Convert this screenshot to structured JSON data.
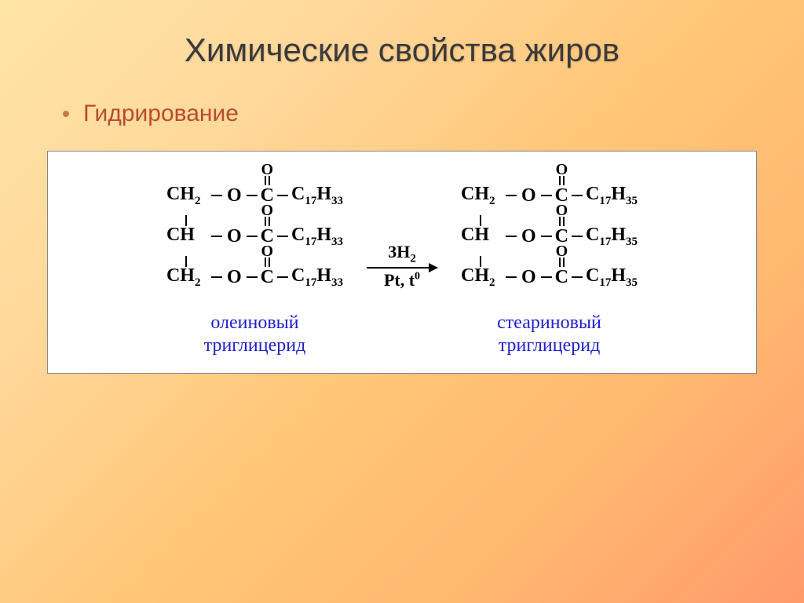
{
  "slide": {
    "title": "Химические свойства жиров",
    "subtitle": "Гидрирование",
    "background_gradient": [
      "#ffe4a8",
      "#ffd89b",
      "#ffc77a",
      "#ffb870",
      "#ff9a6b"
    ],
    "title_color": "#3a3a3a",
    "subtitle_color": "#b84c2f",
    "bullet_color": "#c77a3a"
  },
  "reaction": {
    "reactant": {
      "backbone": [
        "CH",
        "CH",
        "CH"
      ],
      "backbone_sub": [
        "2",
        "",
        "2"
      ],
      "tail_formula": "C",
      "tail_c_sub": "17",
      "tail_h": "H",
      "tail_h_sub": "33",
      "label_line1": "олеиновый",
      "label_line2": "триглицерид",
      "label_color": "#2020cc"
    },
    "arrow": {
      "top_coef": "3H",
      "top_sub": "2",
      "bottom_cat": "Pt, t",
      "bottom_sup": "0"
    },
    "product": {
      "backbone": [
        "CH",
        "CH",
        "CH"
      ],
      "backbone_sub": [
        "2",
        "",
        "2"
      ],
      "tail_formula": "C",
      "tail_c_sub": "17",
      "tail_h": "H",
      "tail_h_sub": "35",
      "label_line1": "стеариновый",
      "label_line2": "триглицерид",
      "label_color": "#2020cc"
    },
    "box_bg": "#ffffff",
    "box_border": "#888888",
    "bond_color": "#000000",
    "text_color": "#000000",
    "font_family": "Times New Roman"
  }
}
